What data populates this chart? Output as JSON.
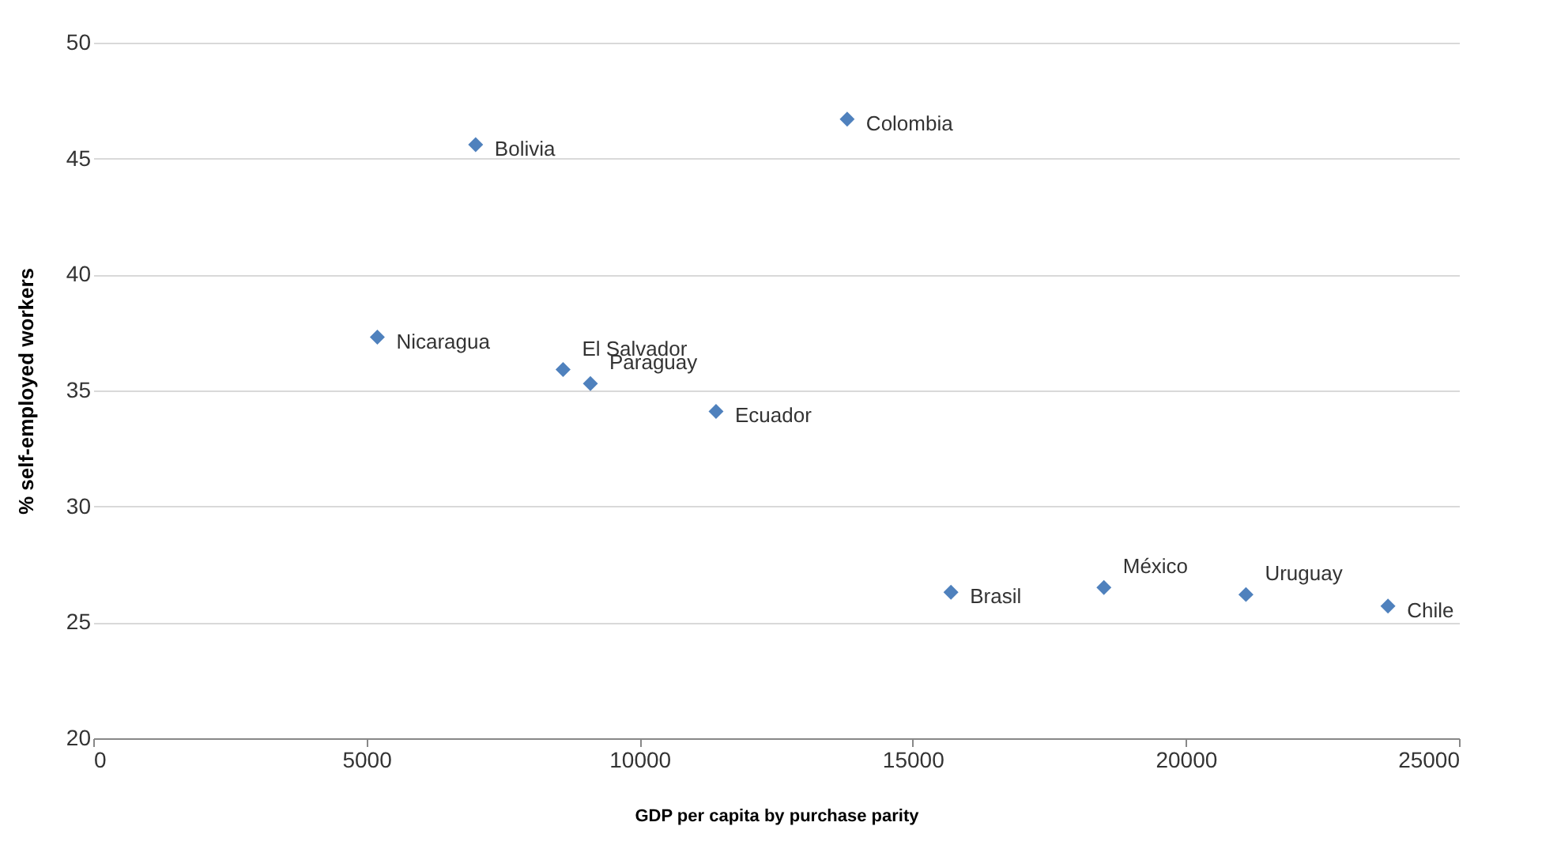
{
  "chart_data": {
    "type": "scatter",
    "xlabel": "GDP per capita by purchase parity",
    "ylabel": "% self-employed workers",
    "x": [
      7000,
      13800,
      5200,
      8600,
      9100,
      11400,
      15700,
      18500,
      21100,
      23700
    ],
    "series": [
      {
        "color": "#4f81bd",
        "values": [
          45.6,
          46.7,
          37.3,
          35.9,
          35.3,
          34.1,
          26.3,
          26.5,
          26.2,
          25.7
        ]
      }
    ],
    "annotations": [
      {
        "text": "Bolivia",
        "x": 7000,
        "y": 45.6
      },
      {
        "text": "Colombia",
        "x": 13800,
        "y": 46.7
      },
      {
        "text": "Nicaragua",
        "x": 5200,
        "y": 37.3
      },
      {
        "text": "El Salvador",
        "x": 8600,
        "y": 35.9
      },
      {
        "text": "Paraguay",
        "x": 9100,
        "y": 35.3
      },
      {
        "text": "Ecuador",
        "x": 11400,
        "y": 34.1
      },
      {
        "text": "Brasil",
        "x": 15700,
        "y": 26.3
      },
      {
        "text": "México",
        "x": 18500,
        "y": 26.5
      },
      {
        "text": "Uruguay",
        "x": 21100,
        "y": 26.2
      },
      {
        "text": "Chile",
        "x": 23700,
        "y": 25.7
      }
    ],
    "xlim": [
      0,
      25000
    ],
    "xticks": [
      0,
      5000,
      10000,
      15000,
      20000,
      25000
    ],
    "ylim": [
      20,
      50
    ],
    "yticks": [
      20,
      25,
      30,
      35,
      40,
      45,
      50
    ],
    "grid": "y",
    "marker": "diamond",
    "legend": false
  }
}
